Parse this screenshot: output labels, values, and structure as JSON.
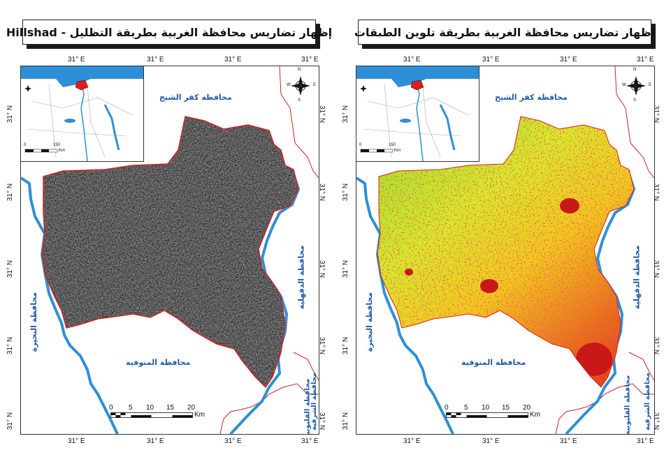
{
  "panels": [
    {
      "id": "left",
      "title": "إظهار تضاريس محافظة الغربية بطريقة التظليل - Hillshad",
      "fill_style": "hillshade"
    },
    {
      "id": "right",
      "title": "إظهار تضاريس محافظة الغربية بطريقة تلوين الطبقات",
      "fill_style": "color-layers"
    }
  ],
  "ticks": {
    "lon": [
      "31° E",
      "31° E",
      "31° E",
      "31° E"
    ],
    "lat": [
      "31° N",
      "31° N",
      "31° N",
      "31° N",
      "31° N"
    ]
  },
  "labels": {
    "kafr_el_sheikh": "محافظة كفر الشيخ",
    "dakahlia": "محافظة الدقهلية",
    "beheira": "محافظة البحيرة",
    "menoufia": "محافظة المنوفية",
    "sharqia": "محافظة الشرقية",
    "qalyubia": "محافظة القليوبية"
  },
  "inset": {
    "scale_values": [
      "0",
      "150"
    ],
    "scale_unit": "Km"
  },
  "scale_bar": {
    "values": [
      "0",
      "5",
      "10",
      "15",
      "20"
    ],
    "unit": "Km"
  },
  "compass": {
    "n": "N",
    "s": "S",
    "e": "E",
    "w": "W"
  },
  "colors": {
    "boundary": "#d62020",
    "river": "#2e8fd6",
    "label": "#1e5aa8",
    "hill_dark": "#3a3a3a",
    "layer_green": "#8be02a",
    "layer_yellow": "#f2e21e",
    "layer_red": "#d81f1f"
  }
}
